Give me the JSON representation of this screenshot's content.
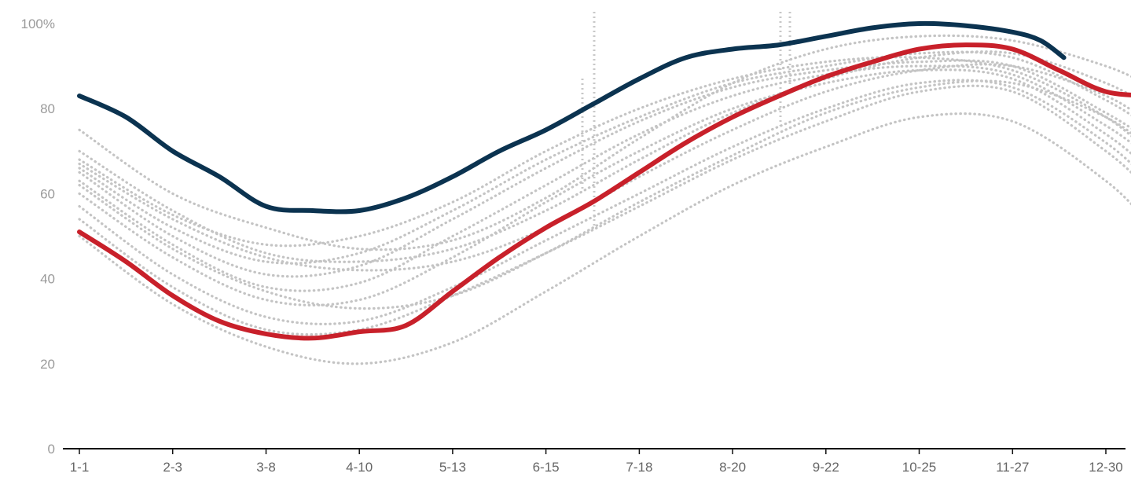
{
  "chart_data": {
    "type": "line",
    "title": "",
    "xlabel": "",
    "ylabel": "",
    "ylim": [
      0,
      100
    ],
    "y_ticks": [
      {
        "value": 100,
        "label": "100%"
      },
      {
        "value": 80,
        "label": "80"
      },
      {
        "value": 60,
        "label": "60"
      },
      {
        "value": 40,
        "label": "40"
      },
      {
        "value": 20,
        "label": "20"
      },
      {
        "value": 0,
        "label": "0"
      }
    ],
    "x_ticks": [
      "1-1",
      "2-3",
      "3-8",
      "4-10",
      "5-13",
      "6-15",
      "7-18",
      "8-20",
      "9-22",
      "10-25",
      "11-27",
      "12-30"
    ],
    "grid": false,
    "legend": "none",
    "colors": {
      "highlight_dark": "#0b3350",
      "highlight_red": "#c8202a",
      "background_series": "#c4c4c4",
      "axis": "#111111",
      "tick_text": "#9a9a9a",
      "x_tick_text": "#666666"
    },
    "series": [
      {
        "style": "dark",
        "x": [
          0,
          0.5,
          1,
          1.5,
          2,
          2.5,
          3,
          3.5,
          4,
          4.5,
          5,
          5.5,
          6,
          6.5,
          7,
          7.5,
          8,
          8.5,
          9,
          9.5,
          10,
          10.3,
          10.55
        ],
        "values": [
          83,
          78,
          70,
          64,
          57,
          56,
          56,
          59,
          64,
          70,
          75,
          81,
          87,
          92,
          94,
          95,
          97,
          99,
          100,
          99.5,
          98,
          96,
          92
        ]
      },
      {
        "style": "red",
        "x": [
          0,
          0.5,
          1,
          1.5,
          2,
          2.5,
          3,
          3.5,
          4,
          4.5,
          5,
          5.5,
          6,
          6.5,
          7,
          7.5,
          8,
          8.5,
          9,
          9.5,
          10,
          10.5,
          11,
          11.5
        ],
        "values": [
          51,
          44,
          36,
          30,
          27,
          26,
          27.5,
          29,
          37,
          45,
          52,
          58,
          65,
          72,
          78,
          83,
          87.5,
          91,
          94,
          95,
          94,
          89,
          84,
          83
        ]
      },
      {
        "style": "grey",
        "x": [
          0,
          1,
          2,
          3,
          4,
          5,
          6,
          7,
          8,
          9,
          10,
          11,
          11.5
        ],
        "values": [
          68,
          55,
          48,
          50,
          58,
          70,
          80,
          87,
          91,
          92,
          89,
          78,
          69
        ]
      },
      {
        "style": "grey",
        "x": [
          0,
          1,
          2,
          3,
          4,
          5,
          6,
          7,
          8,
          9,
          10,
          11,
          11.5
        ],
        "values": [
          66,
          52,
          44,
          46,
          56,
          68,
          78,
          86,
          90,
          93,
          92,
          82,
          75
        ]
      },
      {
        "style": "grey",
        "x": [
          0,
          1,
          2,
          3,
          4,
          5,
          6,
          7,
          8,
          9,
          10,
          11,
          11.5
        ],
        "values": [
          65,
          50,
          41,
          43,
          54,
          66,
          77,
          85,
          89,
          91,
          90,
          79,
          72
        ]
      },
      {
        "style": "grey",
        "x": [
          0,
          1,
          2,
          3,
          4,
          5,
          6,
          7,
          8,
          9,
          10,
          11,
          11.5
        ],
        "values": [
          63,
          48,
          38,
          39,
          50,
          62,
          74,
          83,
          88,
          90,
          88,
          76,
          68
        ]
      },
      {
        "style": "grey",
        "x": [
          0,
          1,
          2,
          3,
          4,
          5,
          6,
          7,
          8,
          9,
          10,
          11,
          11.5
        ],
        "values": [
          60,
          45,
          35,
          35,
          45,
          58,
          70,
          80,
          86,
          89,
          87,
          74,
          65
        ]
      },
      {
        "style": "grey",
        "x": [
          0,
          1,
          2,
          3,
          4,
          5,
          6,
          7,
          8,
          9,
          10,
          11,
          11.5
        ],
        "values": [
          57,
          41,
          31,
          30,
          38,
          49,
          60,
          71,
          80,
          86,
          85,
          72,
          62
        ]
      },
      {
        "style": "grey",
        "x": [
          0,
          1,
          2,
          3,
          4,
          5,
          6,
          7,
          8,
          9,
          10,
          11,
          11.5
        ],
        "values": [
          54,
          38,
          28,
          28,
          36,
          46,
          57,
          68,
          77,
          84,
          84,
          70,
          60
        ]
      },
      {
        "style": "grey",
        "x": [
          0,
          1,
          2,
          3,
          4,
          5,
          6,
          7,
          8,
          9,
          10,
          11,
          11.5
        ],
        "values": [
          50,
          34,
          24,
          20,
          25,
          37,
          50,
          62,
          71,
          78,
          77,
          63,
          52
        ]
      },
      {
        "style": "grey",
        "x": [
          0,
          1,
          2,
          3,
          4,
          5,
          6,
          7,
          8,
          9,
          10,
          11,
          11.5
        ],
        "values": [
          75,
          60,
          52,
          47,
          49,
          59,
          73,
          86,
          94,
          97,
          96,
          90,
          85
        ]
      },
      {
        "style": "grey",
        "x": [
          0,
          1,
          2,
          3,
          4,
          5,
          6,
          7,
          8,
          9,
          10,
          11,
          11.5
        ],
        "values": [
          70,
          56,
          46,
          44,
          47,
          56,
          68,
          79,
          87,
          92,
          93,
          86,
          80
        ]
      },
      {
        "style": "grey",
        "x": [
          0,
          1,
          2,
          3,
          4,
          5,
          6,
          7,
          8,
          9,
          10,
          11,
          11.5
        ],
        "values": [
          67,
          54,
          45,
          42,
          44,
          52,
          64,
          75,
          84,
          89,
          90,
          83,
          76
        ]
      },
      {
        "style": "grey",
        "x": [
          0,
          1,
          2,
          3,
          4,
          5,
          6,
          7,
          8,
          9,
          10,
          11,
          11.5
        ],
        "values": [
          62,
          47,
          37,
          33,
          36,
          46,
          58,
          69,
          79,
          85,
          86,
          78,
          70
        ]
      }
    ]
  }
}
